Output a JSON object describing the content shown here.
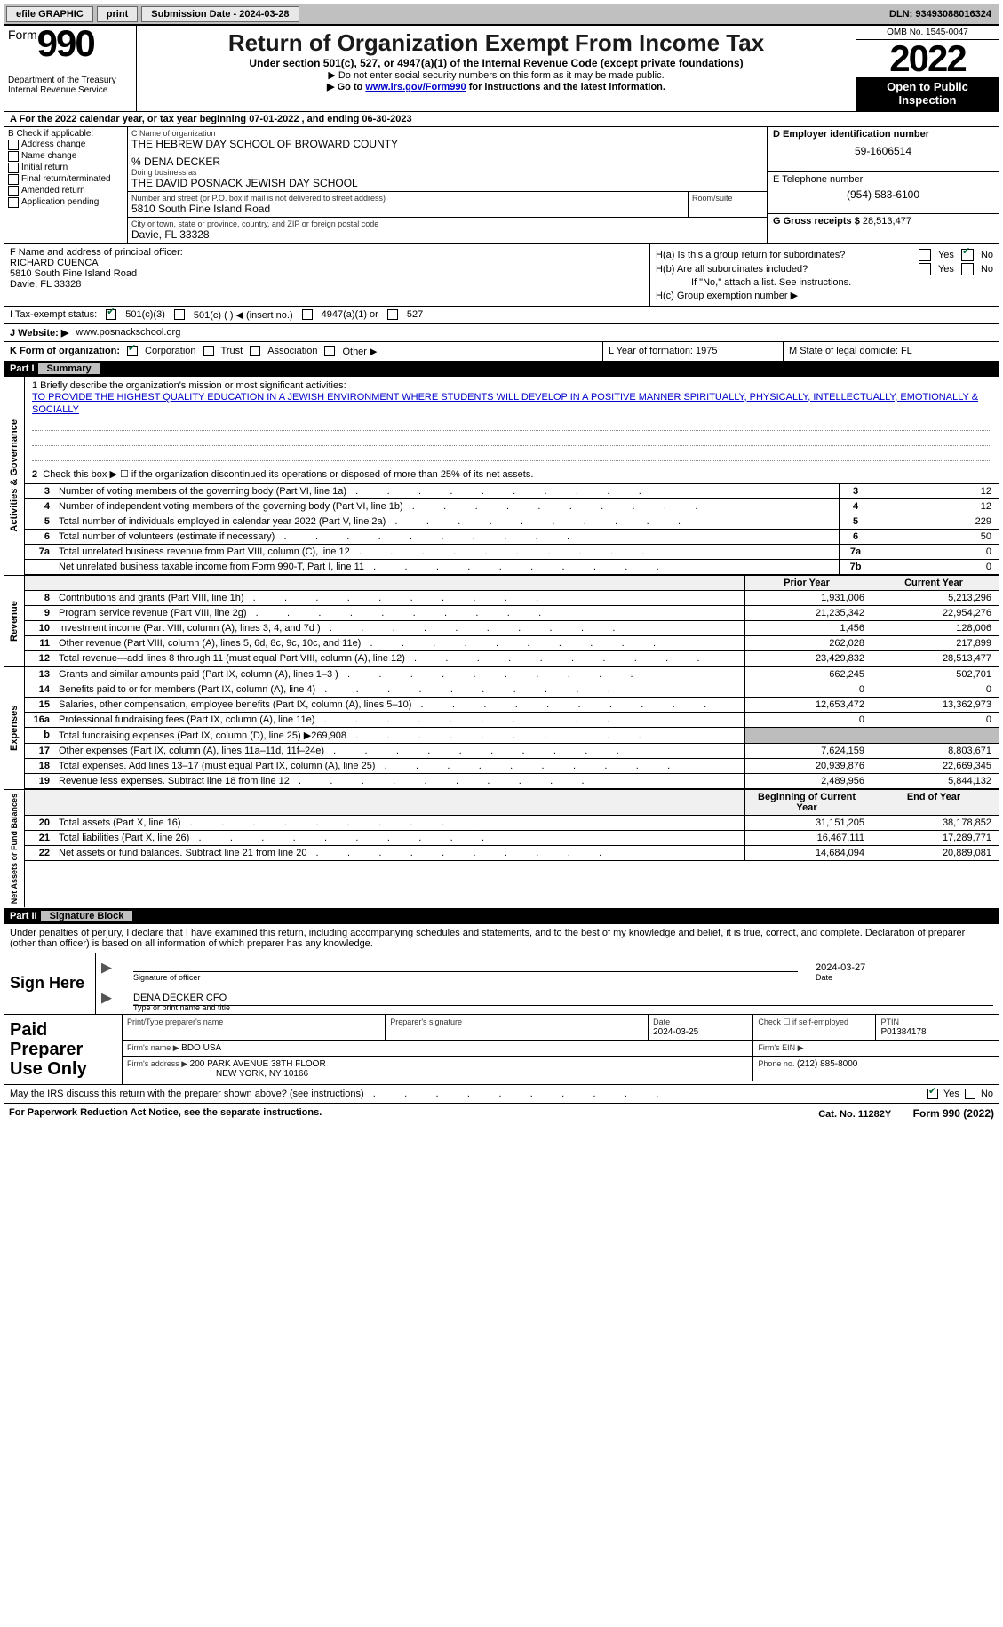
{
  "topbar": {
    "efile": "efile GRAPHIC",
    "print": "print",
    "submission_label": "Submission Date - ",
    "submission_date": "2024-03-28",
    "dln_label": "DLN: ",
    "dln": "93493088016324"
  },
  "header": {
    "form_word": "Form",
    "form_num": "990",
    "dept": "Department of the Treasury",
    "irs": "Internal Revenue Service",
    "title": "Return of Organization Exempt From Income Tax",
    "sub": "Under section 501(c), 527, or 4947(a)(1) of the Internal Revenue Code (except private foundations)",
    "note1": "▶ Do not enter social security numbers on this form as it may be made public.",
    "note2a": "▶ Go to ",
    "note2_link": "www.irs.gov/Form990",
    "note2b": " for instructions and the latest information.",
    "omb": "OMB No. 1545-0047",
    "year": "2022",
    "open": "Open to Public Inspection"
  },
  "line_a": "A For the 2022 calendar year, or tax year beginning 07-01-2022    , and ending 06-30-2023",
  "col_b": {
    "label": "B Check if applicable:",
    "items": [
      "Address change",
      "Name change",
      "Initial return",
      "Final return/terminated",
      "Amended return",
      "Application pending"
    ]
  },
  "col_c": {
    "name_label": "C Name of organization",
    "name": "THE HEBREW DAY SCHOOL OF BROWARD COUNTY",
    "care_of": "% DENA DECKER",
    "dba_label": "Doing business as",
    "dba": "THE DAVID POSNACK JEWISH DAY SCHOOL",
    "street_label": "Number and street (or P.O. box if mail is not delivered to street address)",
    "street": "5810 South Pine Island Road",
    "room_label": "Room/suite",
    "room": "",
    "city_label": "City or town, state or province, country, and ZIP or foreign postal code",
    "city": "Davie, FL  33328"
  },
  "col_d": {
    "d_label": "D Employer identification number",
    "ein": "59-1606514",
    "e_label": "E Telephone number",
    "phone": "(954) 583-6100",
    "g_label": "G Gross receipts $ ",
    "gross": "28,513,477"
  },
  "principal": {
    "f_label": "F  Name and address of principal officer:",
    "name": "RICHARD CUENCA",
    "addr1": "5810 South Pine Island Road",
    "addr2": "Davie, FL  33328",
    "ha": "H(a)  Is this a group return for subordinates?",
    "hb": "H(b)  Are all subordinates included?",
    "hb_note": "If \"No,\" attach a list. See instructions.",
    "hc": "H(c)  Group exemption number ▶",
    "yes": "Yes",
    "no": "No"
  },
  "line_i": {
    "label": "I    Tax-exempt status:",
    "o1": "501(c)(3)",
    "o2": "501(c) (  ) ◀ (insert no.)",
    "o3": "4947(a)(1) or",
    "o4": "527"
  },
  "line_j": {
    "label": "J    Website: ▶ ",
    "url": "www.posnackschool.org"
  },
  "line_k": {
    "k": "K Form of organization:",
    "corp": "Corporation",
    "trust": "Trust",
    "assoc": "Association",
    "other": "Other ▶",
    "l": "L Year of formation: 1975",
    "m": "M State of legal domicile: FL"
  },
  "part1": {
    "num": "Part I",
    "title": "Summary",
    "l1": "1  Briefly describe the organization's mission or most significant activities:",
    "mission": "TO PROVIDE THE HIGHEST QUALITY EDUCATION IN A JEWISH ENVIRONMENT WHERE STUDENTS WILL DEVELOP IN A POSITIVE MANNER SPIRITUALLY, PHYSICALLY, INTELLECTUALLY, EMOTIONALLY & SOCIALLY",
    "l2": "Check this box ▶ ☐  if the organization discontinued its operations or disposed of more than 25% of its net assets.",
    "vert1": "Activities & Governance",
    "vert2": "Revenue",
    "vert3": "Expenses",
    "vert4": "Net Assets or Fund Balances",
    "rows_single": [
      {
        "n": "3",
        "d": "Number of voting members of the governing body (Part VI, line 1a)",
        "b": "3",
        "v": "12"
      },
      {
        "n": "4",
        "d": "Number of independent voting members of the governing body (Part VI, line 1b)",
        "b": "4",
        "v": "12"
      },
      {
        "n": "5",
        "d": "Total number of individuals employed in calendar year 2022 (Part V, line 2a)",
        "b": "5",
        "v": "229"
      },
      {
        "n": "6",
        "d": "Total number of volunteers (estimate if necessary)",
        "b": "6",
        "v": "50"
      },
      {
        "n": "7a",
        "d": "Total unrelated business revenue from Part VIII, column (C), line 12",
        "b": "7a",
        "v": "0"
      },
      {
        "n": "",
        "d": "Net unrelated business taxable income from Form 990-T, Part I, line 11",
        "b": "7b",
        "v": "0"
      }
    ],
    "prior_hdr": "Prior Year",
    "current_hdr": "Current Year",
    "rows_rev": [
      {
        "n": "8",
        "d": "Contributions and grants (Part VIII, line 1h)",
        "p": "1,931,006",
        "c": "5,213,296"
      },
      {
        "n": "9",
        "d": "Program service revenue (Part VIII, line 2g)",
        "p": "21,235,342",
        "c": "22,954,276"
      },
      {
        "n": "10",
        "d": "Investment income (Part VIII, column (A), lines 3, 4, and 7d )",
        "p": "1,456",
        "c": "128,006"
      },
      {
        "n": "11",
        "d": "Other revenue (Part VIII, column (A), lines 5, 6d, 8c, 9c, 10c, and 11e)",
        "p": "262,028",
        "c": "217,899"
      },
      {
        "n": "12",
        "d": "Total revenue—add lines 8 through 11 (must equal Part VIII, column (A), line 12)",
        "p": "23,429,832",
        "c": "28,513,477"
      }
    ],
    "rows_exp": [
      {
        "n": "13",
        "d": "Grants and similar amounts paid (Part IX, column (A), lines 1–3 )",
        "p": "662,245",
        "c": "502,701"
      },
      {
        "n": "14",
        "d": "Benefits paid to or for members (Part IX, column (A), line 4)",
        "p": "0",
        "c": "0"
      },
      {
        "n": "15",
        "d": "Salaries, other compensation, employee benefits (Part IX, column (A), lines 5–10)",
        "p": "12,653,472",
        "c": "13,362,973"
      },
      {
        "n": "16a",
        "d": "Professional fundraising fees (Part IX, column (A), line 11e)",
        "p": "0",
        "c": "0"
      },
      {
        "n": "b",
        "d": "Total fundraising expenses (Part IX, column (D), line 25) ▶269,908",
        "p": "",
        "c": "",
        "grey": true
      },
      {
        "n": "17",
        "d": "Other expenses (Part IX, column (A), lines 11a–11d, 11f–24e)",
        "p": "7,624,159",
        "c": "8,803,671"
      },
      {
        "n": "18",
        "d": "Total expenses. Add lines 13–17 (must equal Part IX, column (A), line 25)",
        "p": "20,939,876",
        "c": "22,669,345"
      },
      {
        "n": "19",
        "d": "Revenue less expenses. Subtract line 18 from line 12",
        "p": "2,489,956",
        "c": "5,844,132"
      }
    ],
    "begin_hdr": "Beginning of Current Year",
    "end_hdr": "End of Year",
    "rows_na": [
      {
        "n": "20",
        "d": "Total assets (Part X, line 16)",
        "p": "31,151,205",
        "c": "38,178,852"
      },
      {
        "n": "21",
        "d": "Total liabilities (Part X, line 26)",
        "p": "16,467,111",
        "c": "17,289,771"
      },
      {
        "n": "22",
        "d": "Net assets or fund balances. Subtract line 21 from line 20",
        "p": "14,684,094",
        "c": "20,889,081"
      }
    ]
  },
  "part2": {
    "num": "Part II",
    "title": "Signature Block",
    "decl": "Under penalties of perjury, I declare that I have examined this return, including accompanying schedules and statements, and to the best of my knowledge and belief, it is true, correct, and complete. Declaration of preparer (other than officer) is based on all information of which preparer has any knowledge.",
    "sign_here": "Sign Here",
    "sig_officer": "Signature of officer",
    "sig_date": "Date",
    "sig_date_val": "2024-03-27",
    "name_title": "DENA DECKER  CFO",
    "type_name": "Type or print name and title",
    "paid": "Paid Preparer Use Only",
    "print_name_lbl": "Print/Type preparer's name",
    "prep_sig_lbl": "Preparer's signature",
    "date_lbl": "Date",
    "date_val": "2024-03-25",
    "check_lbl": "Check ☐ if self-employed",
    "ptin_lbl": "PTIN",
    "ptin": "P01384178",
    "firm_name_lbl": "Firm's name    ▶ ",
    "firm_name": "BDO USA",
    "firm_ein_lbl": "Firm's EIN ▶",
    "firm_addr_lbl": "Firm's address ▶ ",
    "firm_addr1": "200 PARK AVENUE 38TH FLOOR",
    "firm_addr2": "NEW YORK, NY  10166",
    "phone_lbl": "Phone no. ",
    "phone": "(212) 885-8000",
    "may_irs": "May the IRS discuss this return with the preparer shown above? (see instructions)",
    "yes": "Yes",
    "no": "No"
  },
  "footer": {
    "pra": "For Paperwork Reduction Act Notice, see the separate instructions.",
    "cat": "Cat. No. 11282Y",
    "form": "Form 990 (2022)"
  }
}
